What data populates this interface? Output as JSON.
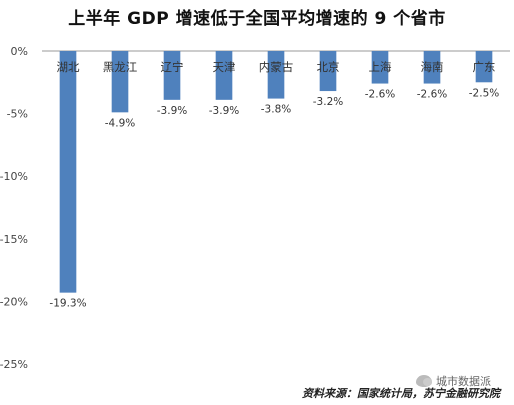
{
  "chart_data": {
    "type": "bar",
    "title": "上半年 GDP 增速低于全国平均增速的 9 个省市",
    "categories": [
      "湖北",
      "黑龙江",
      "辽宁",
      "天津",
      "内蒙古",
      "北京",
      "上海",
      "海南",
      "广东"
    ],
    "values": [
      -19.3,
      -4.9,
      -3.9,
      -3.9,
      -3.8,
      -3.2,
      -2.6,
      -2.6,
      -2.5
    ],
    "data_labels": [
      "-19.3%",
      "-4.9%",
      "-3.9%",
      "-3.9%",
      "-3.8%",
      "-3.2%",
      "-2.6%",
      "-2.6%",
      "-2.5%"
    ],
    "ylim": [
      -25,
      0
    ],
    "yticks": [
      0,
      -5,
      -10,
      -15,
      -20,
      -25
    ],
    "ytick_labels": [
      "0%",
      "-5%",
      "-10%",
      "-15%",
      "-20%",
      "-25%"
    ],
    "bar_color": "#4f81bd",
    "grid": false,
    "legend": "none"
  },
  "source": "资料来源：国家统计局，苏宁金融研究院",
  "watermark": "城市数据派"
}
